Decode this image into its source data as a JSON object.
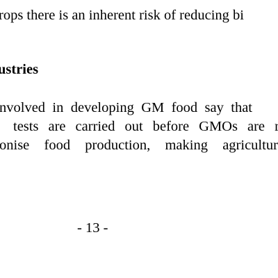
{
  "top_line": "rops there is an inherent risk of reducing bi",
  "heading": "ustries",
  "paragraph": [
    "nvolved in developing GM food say that",
    "tests are carried out before GMOs are re",
    "onise food production, making agriculture"
  ],
  "page_number": "- 13 -"
}
